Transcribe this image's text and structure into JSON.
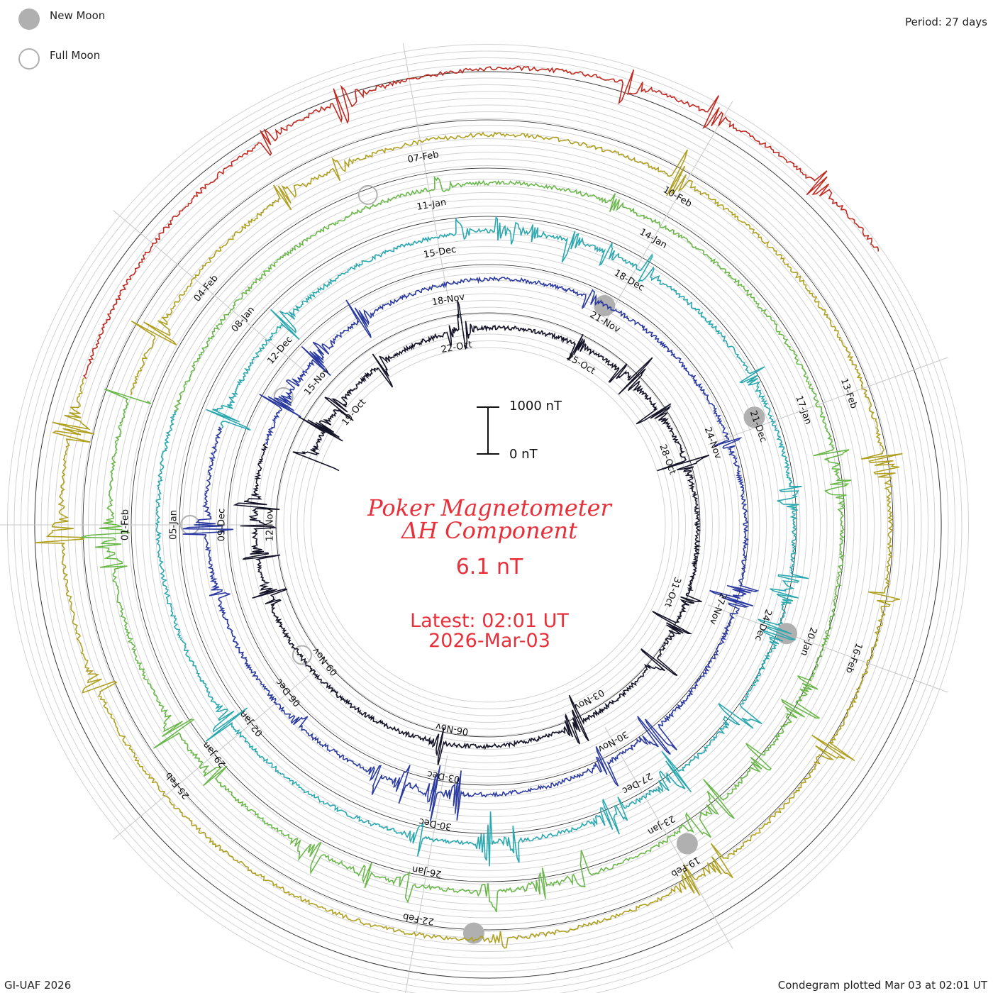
{
  "legend": {
    "new_moon": "New Moon",
    "full_moon": "Full Moon"
  },
  "period": "Period: 27 days",
  "footer_left": "GI-UAF 2026",
  "footer_right": "Condegram plotted Mar 03 at 02:01 UT",
  "title": {
    "line1": "Poker Magnetometer",
    "line2": "ΔH Component",
    "value": "6.1 nT"
  },
  "latest": {
    "time": "Latest: 02:01 UT",
    "date": "2026-Mar-03"
  },
  "scale": {
    "top": "1000 nT",
    "bottom": "0 nT"
  },
  "colors": {
    "title": "#e8303a",
    "grid": "#c8c8c8",
    "moon": "#b0b0b0"
  },
  "chart_data": {
    "type": "line",
    "title": "Poker Magnetometer ΔH Component",
    "period_days": 27,
    "scale_nT": [
      0,
      1000
    ],
    "cycles": [
      {
        "color": "#141428",
        "date_labels": [
          "19-Oct",
          "22-Oct",
          "25-Oct",
          "28-Oct",
          "31-Oct",
          "03-Nov",
          "06-Nov",
          "09-Nov",
          "12-Nov"
        ]
      },
      {
        "color": "#2a3aa0",
        "date_labels": [
          "15-Nov",
          "18-Nov",
          "21-Nov",
          "24-Nov",
          "27-Nov",
          "30-Nov",
          "03-Dec",
          "06-Dec",
          "09-Dec"
        ]
      },
      {
        "color": "#2aa8b0",
        "date_labels": [
          "12-Dec",
          "15-Dec",
          "18-Dec",
          "21-Dec",
          "24-Dec",
          "27-Dec",
          "30-Dec",
          "02-Jan",
          "05-Jan"
        ]
      },
      {
        "color": "#6ab84a",
        "date_labels": [
          "08-Jan",
          "11-Jan",
          "14-Jan",
          "17-Jan",
          "20-Jan",
          "23-Jan",
          "26-Jan",
          "29-Jan",
          "01-Feb"
        ]
      },
      {
        "color": "#b0a020",
        "date_labels": [
          "04-Feb",
          "07-Feb",
          "10-Feb",
          "13-Feb",
          "16-Feb",
          "19-Feb",
          "22-Feb",
          "25-Feb"
        ]
      },
      {
        "color": "#c02a20",
        "date_labels": []
      }
    ]
  }
}
